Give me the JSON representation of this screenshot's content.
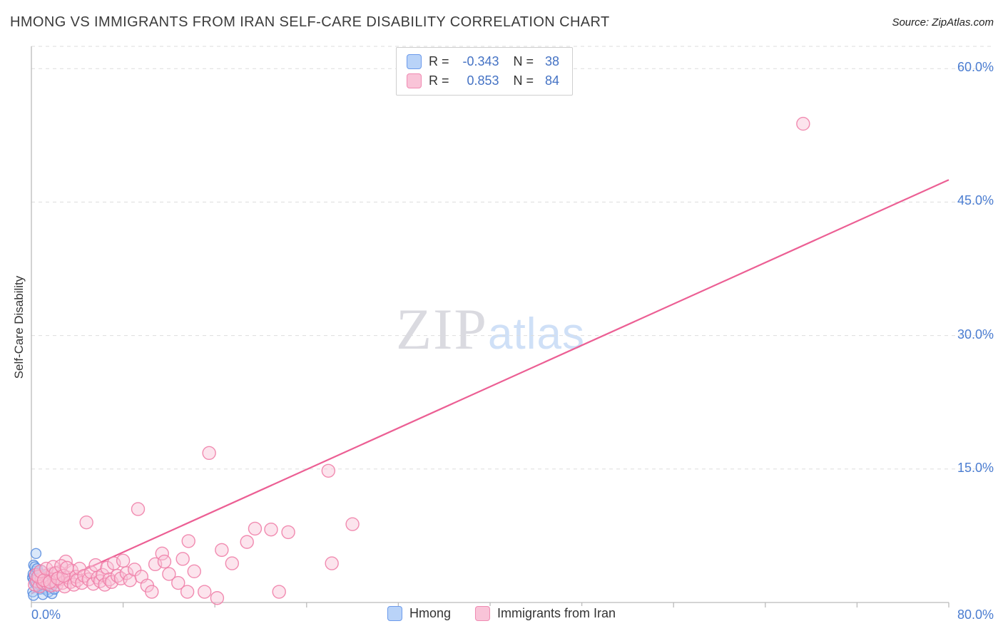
{
  "header": {
    "title": "HMONG VS IMMIGRANTS FROM IRAN SELF-CARE DISABILITY CORRELATION CHART",
    "source": "Source: ZipAtlas.com"
  },
  "axes": {
    "x_min_label": "0.0%",
    "x_max_label": "80.0%"
  },
  "legend_box": {
    "r_label": "R =",
    "n_label": "N ="
  },
  "watermark": {
    "zip": "ZIP",
    "atlas": "atlas"
  },
  "colors": {
    "blue_accent": "#4472c4",
    "blue_fill": "#b9d3f8",
    "pink_accent": "#ec5f94",
    "pink_fill": "#f9c4d8",
    "gridline": "#dddddd",
    "axis": "#bbbbbb",
    "tick_label": "#4a7cd0"
  },
  "chart_data": {
    "type": "scatter",
    "title": "HMONG VS IMMIGRANTS FROM IRAN SELF-CARE DISABILITY CORRELATION CHART",
    "xlabel": "",
    "ylabel": "Self-Care Disability",
    "xlim": [
      0,
      80
    ],
    "ylim": [
      0,
      62.5
    ],
    "grid": "horizontal-dashed",
    "legend_position": "bottom-center",
    "yticks": [
      {
        "value": 15,
        "label": "15.0%"
      },
      {
        "value": 30,
        "label": "30.0%"
      },
      {
        "value": 45,
        "label": "45.0%"
      },
      {
        "value": 60,
        "label": "60.0%"
      }
    ],
    "xticks": [
      0,
      8,
      16,
      24,
      32,
      40,
      48,
      56,
      64,
      72,
      80
    ],
    "series": [
      {
        "name": "Hmong",
        "r": "-0.343",
        "n": "38",
        "stroke": "#5c8fe0",
        "fill": "#aecbf5",
        "radius": 7,
        "points": [
          [
            0.1,
            2.8
          ],
          [
            0.15,
            3.2
          ],
          [
            0.2,
            2.5
          ],
          [
            0.25,
            3.0
          ],
          [
            0.3,
            2.2
          ],
          [
            0.35,
            3.5
          ],
          [
            0.4,
            5.5
          ],
          [
            0.45,
            2.0
          ],
          [
            0.5,
            2.6
          ],
          [
            0.55,
            3.1
          ],
          [
            0.6,
            1.8
          ],
          [
            0.65,
            2.4
          ],
          [
            0.7,
            3.3
          ],
          [
            0.75,
            1.5
          ],
          [
            0.8,
            2.9
          ],
          [
            0.85,
            2.1
          ],
          [
            0.9,
            3.6
          ],
          [
            0.95,
            1.9
          ],
          [
            1.0,
            2.7
          ],
          [
            1.05,
            3.0
          ],
          [
            1.1,
            1.6
          ],
          [
            1.15,
            2.3
          ],
          [
            1.2,
            2.8
          ],
          [
            1.3,
            1.4
          ],
          [
            1.35,
            2.0
          ],
          [
            1.4,
            3.2
          ],
          [
            1.5,
            1.2
          ],
          [
            1.6,
            2.5
          ],
          [
            1.7,
            1.8
          ],
          [
            1.8,
            1.0
          ],
          [
            1.9,
            2.2
          ],
          [
            2.0,
            1.5
          ],
          [
            0.2,
            4.2
          ],
          [
            0.3,
            4.0
          ],
          [
            0.5,
            3.8
          ],
          [
            0.12,
            1.2
          ],
          [
            0.18,
            0.8
          ],
          [
            1.0,
            0.9
          ]
        ]
      },
      {
        "name": "Immigrants from Iran",
        "r": "0.853",
        "n": "84",
        "stroke": "#ef7fa9",
        "fill": "#f9c4d8",
        "radius": 9,
        "points": [
          [
            0.3,
            2.0
          ],
          [
            0.5,
            2.4
          ],
          [
            0.7,
            1.8
          ],
          [
            0.9,
            2.6
          ],
          [
            1.0,
            2.2
          ],
          [
            1.2,
            3.0
          ],
          [
            1.4,
            2.1
          ],
          [
            1.5,
            2.8
          ],
          [
            1.7,
            1.9
          ],
          [
            1.8,
            3.2
          ],
          [
            2.0,
            2.4
          ],
          [
            2.2,
            2.0
          ],
          [
            2.4,
            3.4
          ],
          [
            2.5,
            2.6
          ],
          [
            2.7,
            2.2
          ],
          [
            2.9,
            1.8
          ],
          [
            3.0,
            4.6
          ],
          [
            3.2,
            2.8
          ],
          [
            3.4,
            2.3
          ],
          [
            3.5,
            3.6
          ],
          [
            3.7,
            2.0
          ],
          [
            3.9,
            2.9
          ],
          [
            4.0,
            2.5
          ],
          [
            4.2,
            3.8
          ],
          [
            4.4,
            2.2
          ],
          [
            4.6,
            3.0
          ],
          [
            4.8,
            9.0
          ],
          [
            5.0,
            2.6
          ],
          [
            5.2,
            3.4
          ],
          [
            5.4,
            2.1
          ],
          [
            5.6,
            4.2
          ],
          [
            5.8,
            2.8
          ],
          [
            6.0,
            2.4
          ],
          [
            6.2,
            3.1
          ],
          [
            6.4,
            2.0
          ],
          [
            6.6,
            3.9
          ],
          [
            6.8,
            2.6
          ],
          [
            7.0,
            2.3
          ],
          [
            7.2,
            4.4
          ],
          [
            7.5,
            3.0
          ],
          [
            7.8,
            2.7
          ],
          [
            8.0,
            4.7
          ],
          [
            8.3,
            3.3
          ],
          [
            8.6,
            2.5
          ],
          [
            9.0,
            3.7
          ],
          [
            9.3,
            10.5
          ],
          [
            9.6,
            2.9
          ],
          [
            10.1,
            1.9
          ],
          [
            10.5,
            1.2
          ],
          [
            10.8,
            4.3
          ],
          [
            11.4,
            5.5
          ],
          [
            11.6,
            4.6
          ],
          [
            12.0,
            3.2
          ],
          [
            12.8,
            2.2
          ],
          [
            13.2,
            4.9
          ],
          [
            13.6,
            1.2
          ],
          [
            13.7,
            6.9
          ],
          [
            14.2,
            3.5
          ],
          [
            15.1,
            1.2
          ],
          [
            15.5,
            16.8
          ],
          [
            16.2,
            0.5
          ],
          [
            16.6,
            5.9
          ],
          [
            17.5,
            4.4
          ],
          [
            18.8,
            6.8
          ],
          [
            19.5,
            8.3
          ],
          [
            20.9,
            8.2
          ],
          [
            21.6,
            1.2
          ],
          [
            22.4,
            7.9
          ],
          [
            25.9,
            14.8
          ],
          [
            26.2,
            4.4
          ],
          [
            28.0,
            8.8
          ],
          [
            67.3,
            53.8
          ],
          [
            0.4,
            3.1
          ],
          [
            0.6,
            2.9
          ],
          [
            0.8,
            3.5
          ],
          [
            1.1,
            2.5
          ],
          [
            1.3,
            3.8
          ],
          [
            1.6,
            2.3
          ],
          [
            1.9,
            4.0
          ],
          [
            2.1,
            3.3
          ],
          [
            2.3,
            2.7
          ],
          [
            2.6,
            4.1
          ],
          [
            2.8,
            3.0
          ],
          [
            3.1,
            3.9
          ]
        ]
      }
    ],
    "trendlines": [
      {
        "series": "Hmong",
        "x1": 0.0,
        "y1": 3.0,
        "x2": 2.2,
        "y2": 0.9,
        "color": "#5c8fe0",
        "width": 2
      },
      {
        "series": "Immigrants from Iran",
        "x1": 0.0,
        "y1": 1.0,
        "x2": 80.0,
        "y2": 47.5,
        "color": "#ec5f94",
        "width": 2.2
      }
    ]
  }
}
